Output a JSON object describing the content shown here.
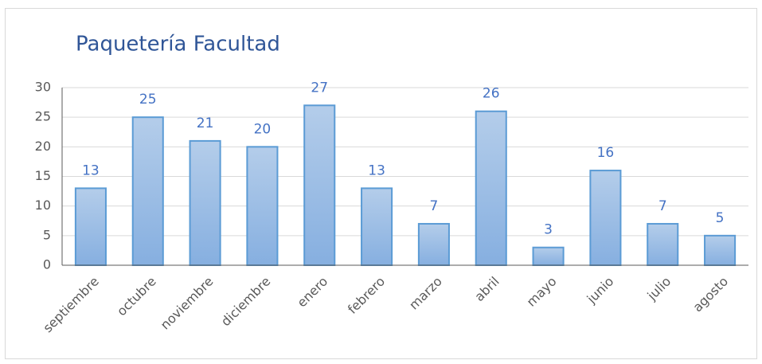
{
  "chart_data": {
    "type": "bar",
    "title": "Paquetería  Facultad",
    "categories": [
      "septiembre",
      "octubre",
      "noviembre",
      "diciembre",
      "enero",
      "febrero",
      "marzo",
      "abril",
      "mayo",
      "junio",
      "julio",
      "agosto"
    ],
    "values": [
      13,
      25,
      21,
      20,
      27,
      13,
      7,
      26,
      3,
      16,
      7,
      5
    ],
    "color": "#5b9bd5",
    "ylim": [
      0,
      30
    ],
    "yticks": [
      0,
      5,
      10,
      15,
      20,
      25,
      30
    ],
    "grid": true
  }
}
